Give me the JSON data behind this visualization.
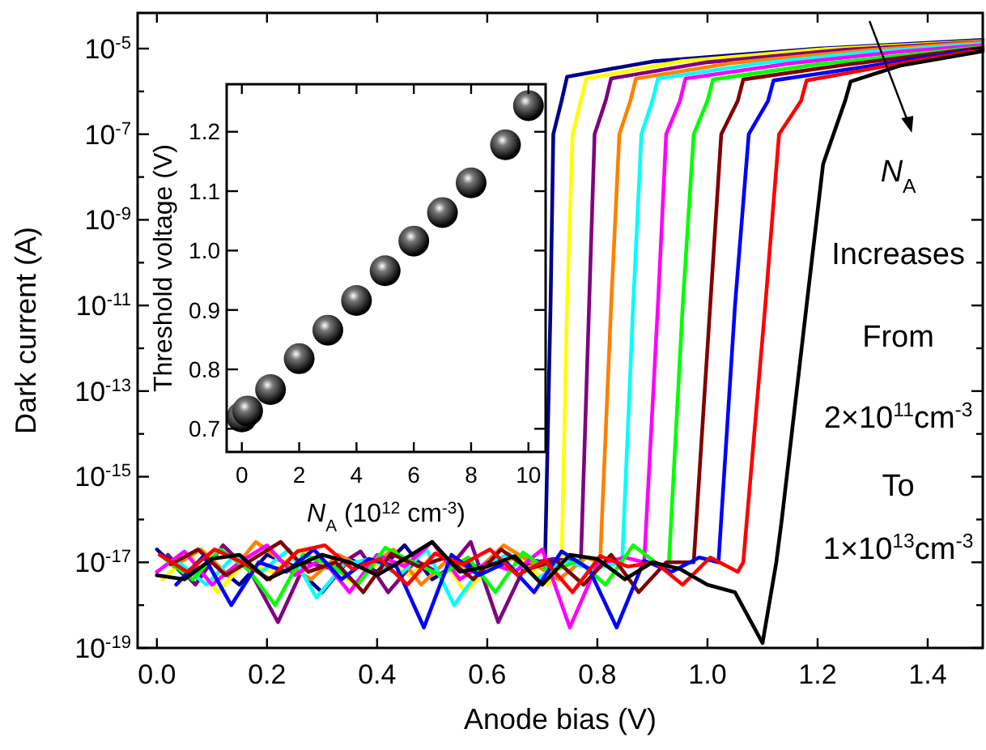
{
  "chart_data": [
    {
      "type": "line",
      "xlabel": "Anode bias (V)",
      "ylabel": "Dark current (A)",
      "log": "y",
      "line_style": "solid",
      "xlim": [
        -0.035,
        1.5
      ],
      "xticks": [
        {
          "value": 0,
          "label": "0.0"
        },
        0.2,
        0.4,
        0.6,
        0.8,
        {
          "value": 1,
          "label": "1.0"
        },
        1.2,
        1.4
      ],
      "ylim": [
        1e-19,
        6.8e-05
      ],
      "yticks": [
        {
          "value": 1e-19,
          "label": "10$^{-19}$"
        },
        {
          "value": 1e-18,
          "label": null
        },
        {
          "value": 1e-17,
          "label": "10$^{-17}$"
        },
        {
          "value": 1e-16,
          "label": null
        },
        {
          "value": 1e-15,
          "label": "10$^{-15}$"
        },
        {
          "value": 1e-14,
          "label": null
        },
        {
          "value": 1e-13,
          "label": "10$^{-13}$"
        },
        {
          "value": 1e-12,
          "label": null
        },
        {
          "value": 1e-11,
          "label": "10$^{-11}$"
        },
        {
          "value": 1e-10,
          "label": null
        },
        {
          "value": 1e-09,
          "label": "10$^{-9}$"
        },
        {
          "value": 1e-08,
          "label": null
        },
        {
          "value": 1e-07,
          "label": "10$^{-7}$"
        },
        {
          "value": 1e-06,
          "label": null
        },
        {
          "value": 1e-05,
          "label": "10$^{-5}$"
        }
      ],
      "annotations": [
        "N$_{A}$",
        "Increases",
        "From",
        "2×10$^{11}$cm$^{-3}$",
        "To",
        "1×10$^{13}$cm$^{-3}$"
      ],
      "series": [
        {
          "color": "#00008b",
          "x": [
            0,
            0.05,
            0.1,
            0.15,
            0.2,
            0.25,
            0.3,
            0.35,
            0.4,
            0.45,
            0.5,
            0.55,
            0.6,
            0.65,
            0.705,
            0.715,
            0.72,
            0.735,
            0.745,
            0.9,
            1.2,
            1.5
          ],
          "values": [
            2e-17,
            5e-18,
            1e-17,
            3e-18,
            1.5e-17,
            8e-18,
            2e-18,
            1.2e-17,
            6e-18,
            2.5e-17,
            4e-18,
            1e-17,
            7e-18,
            1.3e-17,
            1e-17,
            1e-11,
            1e-07,
            6e-07,
            2.2e-06,
            5e-06,
            1e-05,
            1.6e-05
          ]
        },
        {
          "color": "#ffff00",
          "x": [
            0.01,
            0.06,
            0.11,
            0.16,
            0.21,
            0.26,
            0.31,
            0.36,
            0.41,
            0.46,
            0.51,
            0.56,
            0.61,
            0.66,
            0.71,
            0.735,
            0.745,
            0.755,
            0.77,
            0.78,
            0.95,
            1.2,
            1.5
          ],
          "values": [
            4e-18,
            1.5e-17,
            2e-18,
            1e-17,
            6e-18,
            2e-17,
            8e-18,
            3e-18,
            1.2e-17,
            5e-18,
            1.8e-17,
            2e-18,
            9e-18,
            1.4e-17,
            3e-18,
            1e-17,
            1e-11,
            1e-07,
            6e-07,
            2e-06,
            5e-06,
            9.5e-06,
            1.5e-05
          ]
        },
        {
          "color": "#800080",
          "x": [
            0.02,
            0.07,
            0.12,
            0.17,
            0.22,
            0.27,
            0.32,
            0.37,
            0.42,
            0.47,
            0.52,
            0.57,
            0.62,
            0.67,
            0.72,
            0.77,
            0.785,
            0.795,
            0.815,
            0.825,
            1.0,
            1.25,
            1.5
          ],
          "values": [
            1.5e-17,
            3e-18,
            2.5e-17,
            6e-18,
            4e-19,
            1e-17,
            7e-18,
            1.8e-17,
            2e-18,
            1.1e-17,
            5e-18,
            3e-17,
            4e-19,
            9e-18,
            1.2e-17,
            1e-17,
            1e-11,
            1e-07,
            6e-07,
            2e-06,
            4.8e-06,
            9.5e-06,
            1.45e-05
          ]
        },
        {
          "color": "#ff8000",
          "x": [
            0.03,
            0.08,
            0.13,
            0.18,
            0.23,
            0.28,
            0.33,
            0.38,
            0.43,
            0.48,
            0.53,
            0.58,
            0.63,
            0.68,
            0.73,
            0.78,
            0.805,
            0.825,
            0.84,
            0.86,
            0.87,
            1.05,
            1.3,
            1.5
          ],
          "values": [
            8e-18,
            2e-17,
            5e-18,
            3e-17,
            1e-17,
            4e-18,
            1.5e-17,
            7e-18,
            2e-17,
            3e-18,
            1.2e-17,
            6e-18,
            2.5e-17,
            1e-17,
            4e-18,
            1.3e-17,
            1e-17,
            1e-11,
            1e-07,
            6e-07,
            2e-06,
            4.7e-06,
            9.5e-06,
            1.4e-05
          ]
        },
        {
          "color": "#00ffff",
          "x": [
            0.04,
            0.09,
            0.14,
            0.19,
            0.24,
            0.29,
            0.34,
            0.39,
            0.44,
            0.49,
            0.54,
            0.59,
            0.64,
            0.69,
            0.74,
            0.79,
            0.845,
            0.865,
            0.88,
            0.9,
            0.91,
            1.1,
            1.3,
            1.5
          ],
          "values": [
            1e-17,
            3e-18,
            1.4e-17,
            6e-18,
            2e-17,
            1.5e-18,
            9e-18,
            1.2e-17,
            5e-18,
            2e-17,
            1e-18,
            8e-18,
            1.6e-17,
            4e-18,
            1.1e-17,
            7e-18,
            1e-17,
            1e-11,
            1e-07,
            6e-07,
            2e-06,
            4.6e-06,
            8.5e-06,
            1.3e-05
          ]
        },
        {
          "color": "#ff00ff",
          "x": [
            0,
            0.05,
            0.1,
            0.15,
            0.2,
            0.25,
            0.3,
            0.35,
            0.4,
            0.45,
            0.5,
            0.55,
            0.6,
            0.65,
            0.7,
            0.75,
            0.8,
            0.85,
            0.885,
            0.91,
            0.925,
            0.95,
            0.96,
            1.15,
            1.35,
            1.5
          ],
          "values": [
            6e-18,
            1.8e-17,
            3e-18,
            1e-17,
            2.5e-17,
            5e-18,
            1.2e-17,
            2e-18,
            1.5e-17,
            8e-18,
            3e-17,
            4e-18,
            1e-17,
            6e-18,
            2e-17,
            3e-19,
            9e-18,
            1.3e-17,
            1e-17,
            1e-11,
            1e-07,
            6e-07,
            2e-06,
            4.5e-06,
            8.5e-06,
            1.2e-05
          ]
        },
        {
          "color": "#00ff00",
          "x": [
            0.015,
            0.065,
            0.115,
            0.165,
            0.215,
            0.265,
            0.315,
            0.365,
            0.415,
            0.465,
            0.515,
            0.565,
            0.615,
            0.665,
            0.715,
            0.765,
            0.815,
            0.865,
            0.915,
            0.93,
            0.955,
            0.975,
            1.0,
            1.01,
            1.2,
            1.5
          ],
          "values": [
            1.2e-17,
            4e-18,
            2e-17,
            7e-18,
            1e-18,
            1.5e-17,
            9e-18,
            3e-18,
            2.2e-17,
            1e-17,
            5e-18,
            1.3e-17,
            2e-18,
            1.7e-17,
            6e-18,
            1.1e-17,
            3e-18,
            2.5e-17,
            8e-18,
            1e-17,
            1e-11,
            1e-07,
            6e-07,
            1.9e-06,
            4.3e-06,
            1.1e-05
          ]
        },
        {
          "color": "#800000",
          "x": [
            0.025,
            0.075,
            0.125,
            0.175,
            0.225,
            0.275,
            0.325,
            0.375,
            0.425,
            0.475,
            0.525,
            0.575,
            0.625,
            0.675,
            0.725,
            0.775,
            0.825,
            0.875,
            0.925,
            0.975,
            1.005,
            1.025,
            1.055,
            1.065,
            1.25,
            1.5
          ],
          "values": [
            9e-18,
            2e-17,
            5e-18,
            1.2e-17,
            3e-17,
            6e-18,
            1e-17,
            2e-18,
            1.6e-17,
            8e-18,
            1.3e-17,
            4e-18,
            2e-17,
            7e-18,
            1.1e-17,
            3e-18,
            1.5e-17,
            2e-18,
            1e-17,
            1e-17,
            1e-11,
            1e-07,
            6e-07,
            1.9e-06,
            4.2e-06,
            1.05e-05
          ]
        },
        {
          "color": "#0000ff",
          "x": [
            0.035,
            0.085,
            0.135,
            0.185,
            0.235,
            0.285,
            0.335,
            0.385,
            0.435,
            0.485,
            0.535,
            0.585,
            0.635,
            0.685,
            0.735,
            0.785,
            0.835,
            0.885,
            0.935,
            0.985,
            1.02,
            1.05,
            1.075,
            1.11,
            1.12,
            1.3,
            1.5
          ],
          "values": [
            3e-18,
            1.4e-17,
            1e-18,
            1e-17,
            6e-18,
            2e-17,
            4e-18,
            1.2e-17,
            8e-18,
            3e-19,
            1.5e-17,
            5e-18,
            1e-17,
            2e-18,
            1.8e-17,
            7e-18,
            3e-19,
            1.1e-17,
            6e-18,
            1.3e-17,
            1e-17,
            1e-11,
            1e-07,
            6e-07,
            1.8e-06,
            4e-06,
            1e-05
          ]
        },
        {
          "color": "#ff0000",
          "x": [
            0.005,
            0.055,
            0.105,
            0.155,
            0.205,
            0.255,
            0.305,
            0.355,
            0.405,
            0.455,
            0.505,
            0.555,
            0.605,
            0.655,
            0.705,
            0.755,
            0.805,
            0.855,
            0.905,
            0.955,
            1.005,
            1.055,
            1.065,
            1.105,
            1.13,
            1.17,
            1.18,
            1.35,
            1.5
          ],
          "values": [
            1.5e-17,
            6e-18,
            2e-17,
            1e-17,
            4e-18,
            1.8e-17,
            2.5e-17,
            7e-18,
            1.2e-17,
            3e-18,
            1.6e-17,
            9e-18,
            2e-17,
            5e-18,
            1.1e-17,
            2e-18,
            1.4e-17,
            8e-18,
            1e-17,
            3e-18,
            1.3e-17,
            6e-18,
            1e-17,
            1e-11,
            1e-07,
            6e-07,
            1.8e-06,
            4.5e-06,
            9.5e-06
          ]
        },
        {
          "color": "#000000",
          "x": [
            0,
            0.05,
            0.1,
            0.15,
            0.2,
            0.25,
            0.3,
            0.35,
            0.4,
            0.45,
            0.5,
            0.55,
            0.6,
            0.65,
            0.7,
            0.75,
            0.8,
            0.85,
            0.9,
            0.95,
            1.0,
            1.05,
            1.1,
            1.125,
            1.135,
            1.18,
            1.21,
            1.25,
            1.26,
            1.35,
            1.5
          ],
          "values": [
            5e-18,
            4e-18,
            1.2e-17,
            1.5e-17,
            4e-18,
            8e-18,
            1.5e-17,
            1e-17,
            5e-18,
            1.2e-17,
            3e-17,
            6e-18,
            8e-18,
            1.4e-17,
            3e-18,
            1.5e-17,
            1.2e-17,
            4e-18,
            1e-17,
            7e-18,
            3e-18,
            2e-18,
            1.3e-19,
            1e-17,
            1e-16,
            1e-11,
            2e-08,
            6e-07,
            1.7e-06,
            4e-06,
            8.7e-06
          ]
        }
      ]
    },
    {
      "type": "scatter",
      "xlabel": "N$_{A}$ (10$^{12}$ cm$^{-3}$)",
      "ylabel": "Threshold voltage (V)",
      "marker": "circle",
      "xlim": [
        -0.53,
        10.6
      ],
      "xticks": [
        0,
        2,
        4,
        6,
        8,
        10
      ],
      "ylim": [
        0.661,
        1.28
      ],
      "yticks": [
        0.7,
        0.8,
        0.9,
        {
          "value": 1,
          "label": "1.0"
        },
        1.1,
        1.2
      ],
      "series": [
        {
          "color": "#000000",
          "x": [
            0,
            0.2,
            1,
            2,
            3,
            4,
            5,
            6,
            7,
            8,
            9.2,
            10
          ],
          "values": [
            0.72,
            0.73,
            0.766,
            0.818,
            0.866,
            0.916,
            0.966,
            1.016,
            1.064,
            1.114,
            1.178,
            1.244
          ]
        }
      ]
    }
  ]
}
